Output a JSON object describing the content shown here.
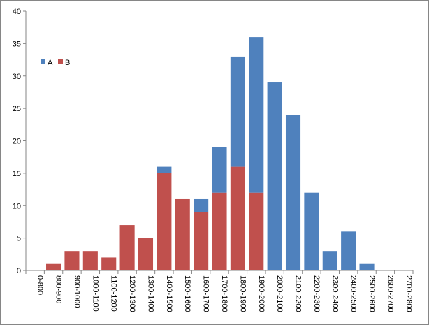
{
  "chart_data": {
    "type": "bar",
    "stacked": true,
    "categories": [
      "0-800",
      "800-900",
      "900-1000",
      "1000-1100",
      "1100-1200",
      "1200-1300",
      "1300-1400",
      "1400-1500",
      "1500-1600",
      "1600-1700",
      "1700-1800",
      "1800-1900",
      "1900-2000",
      "2000-2100",
      "2100-2200",
      "2200-2300",
      "2300-2400",
      "2400-2500",
      "2500-2600",
      "2600-2700",
      "2700-2800"
    ],
    "series": [
      {
        "name": "B",
        "color": "#c0504d",
        "values": [
          0,
          1,
          3,
          3,
          2,
          7,
          5,
          15,
          11,
          9,
          12,
          16,
          12,
          0,
          0,
          0,
          0,
          0,
          0,
          0,
          0
        ]
      },
      {
        "name": "A",
        "color": "#4f81bd",
        "values": [
          0,
          0,
          0,
          0,
          0,
          0,
          0,
          1,
          0,
          2,
          7,
          17,
          24,
          29,
          24,
          12,
          3,
          6,
          1,
          0,
          0
        ]
      }
    ],
    "ylim": [
      0,
      40
    ],
    "yticks": [
      "0",
      "5",
      "10",
      "15",
      "20",
      "25",
      "30",
      "35",
      "40"
    ],
    "legend": {
      "position": "top-left",
      "items": [
        "A",
        "B"
      ]
    },
    "grid": false,
    "title": "",
    "xlabel": "",
    "ylabel": ""
  }
}
